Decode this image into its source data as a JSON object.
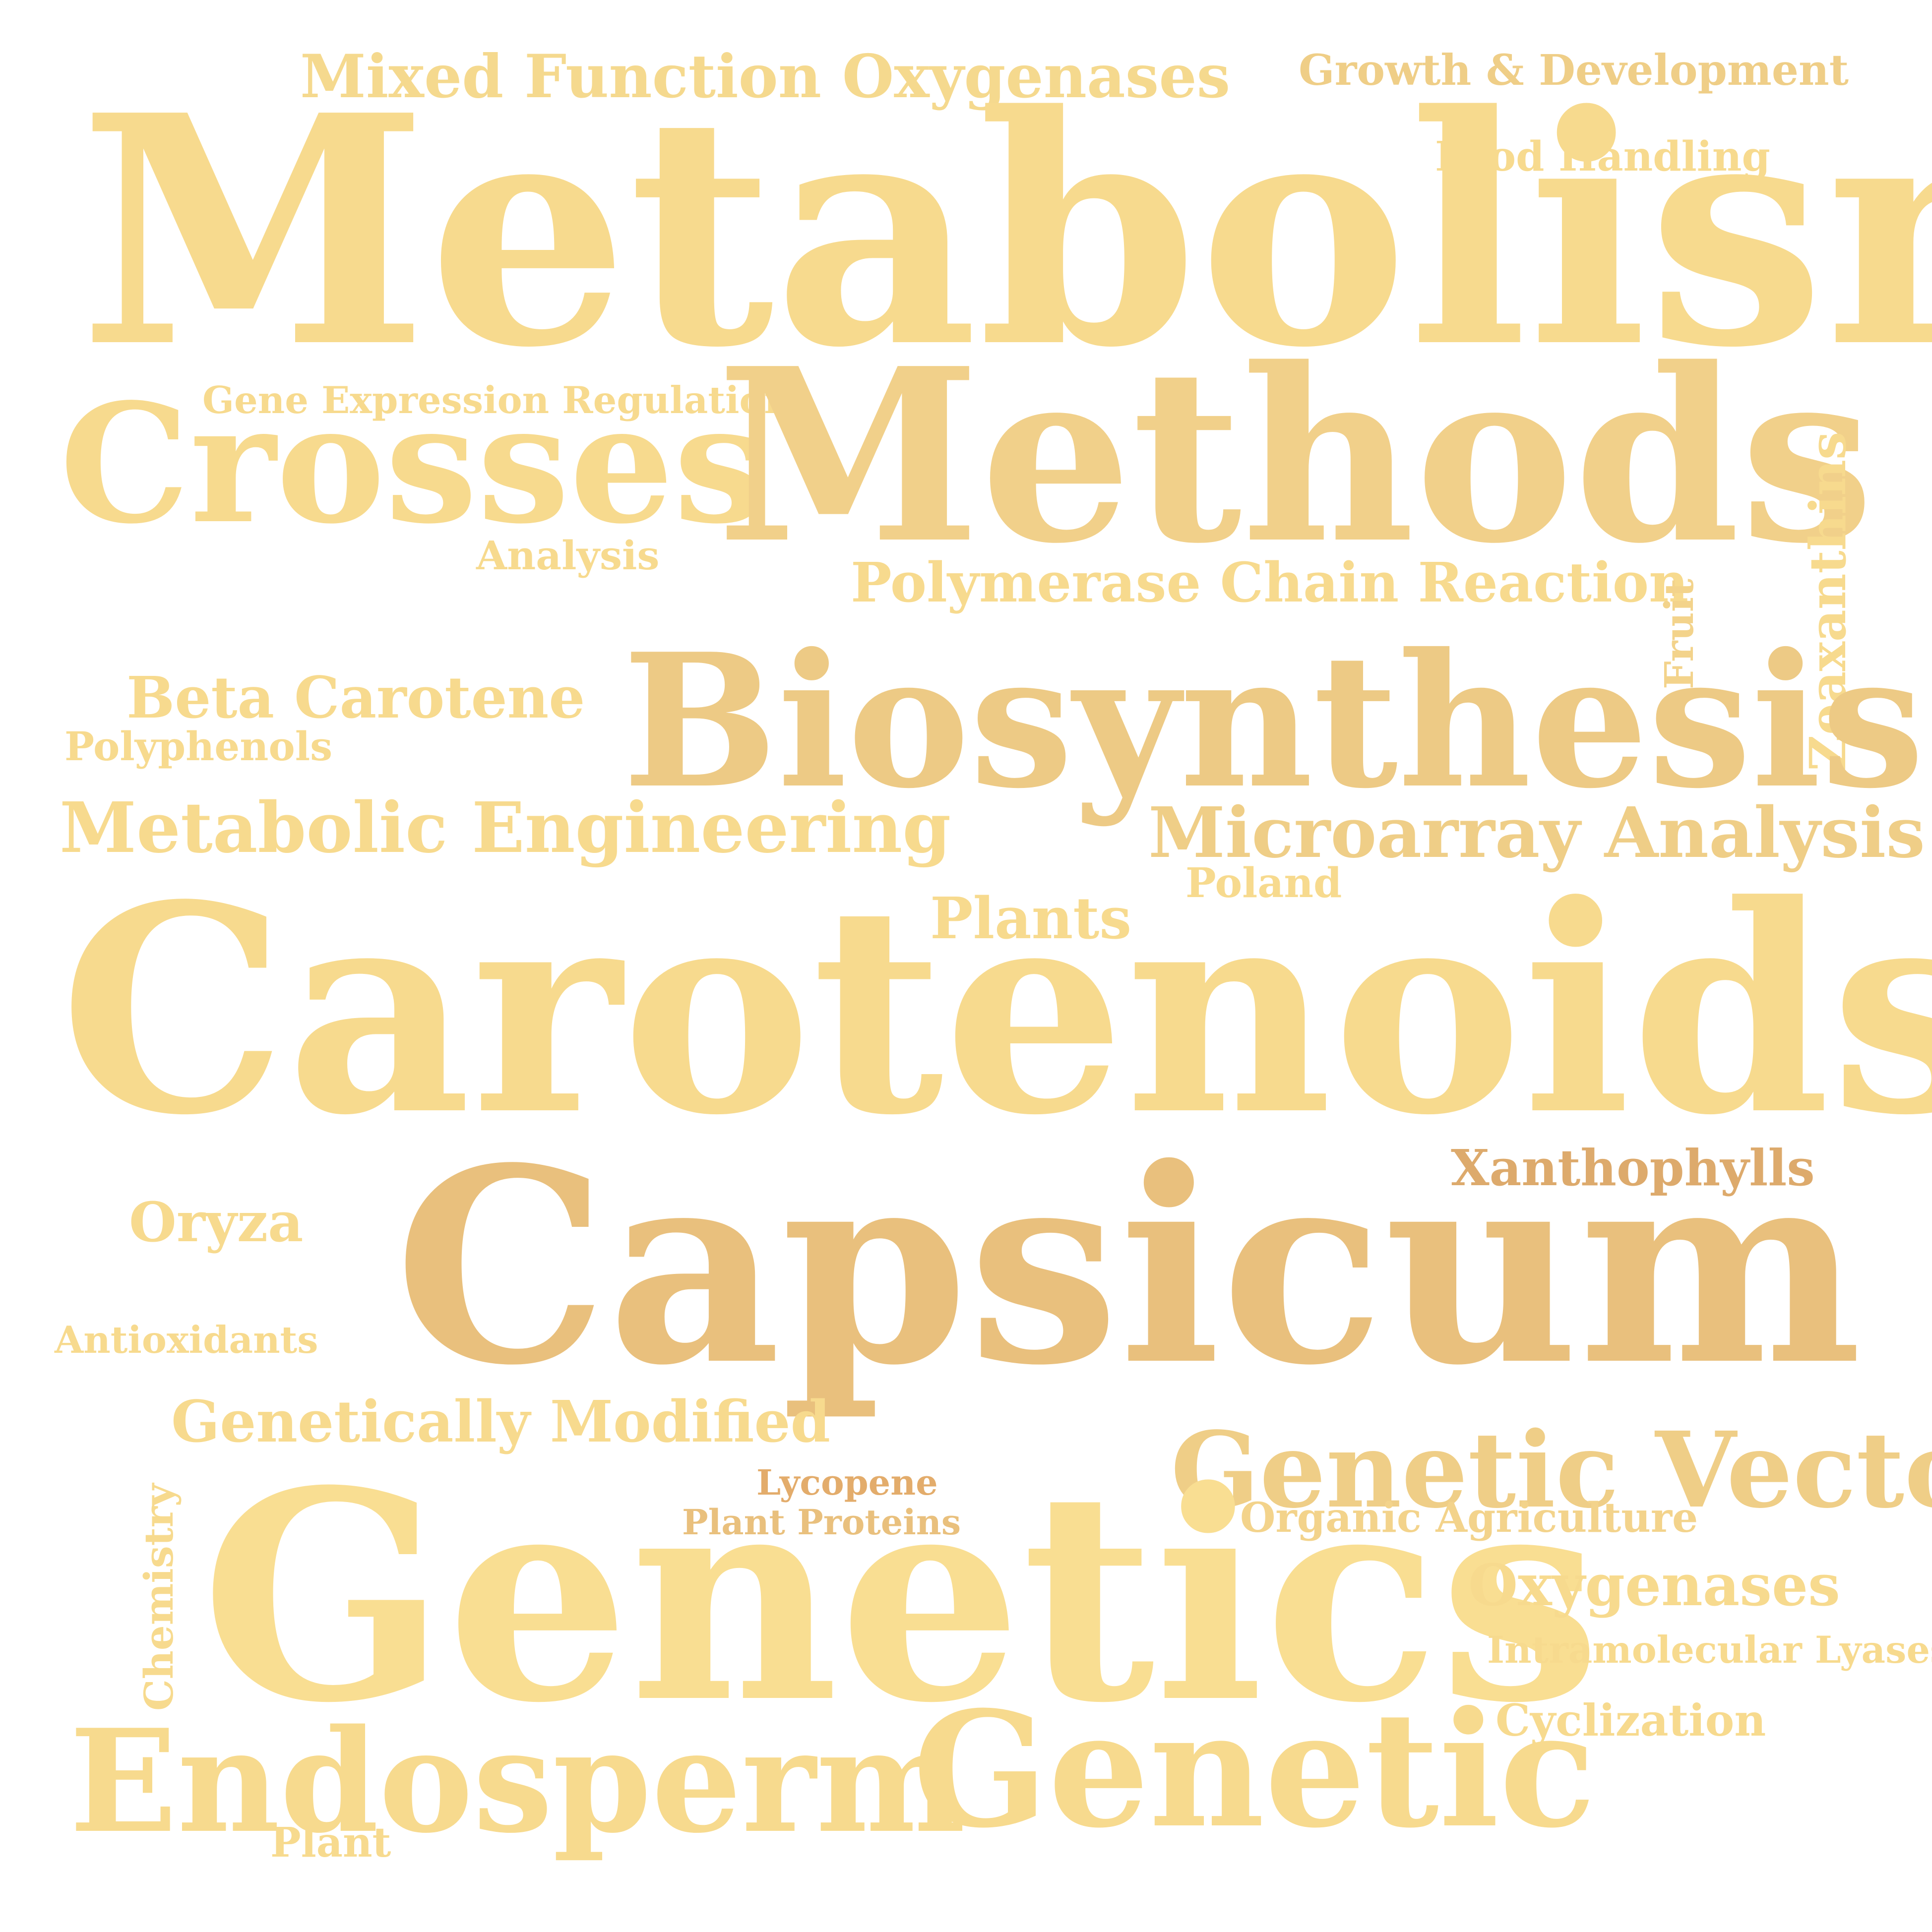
{
  "words": {
    "mixed_function_oxygenases": {
      "text": "Mixed Function Oxygenases",
      "color": "#F5D98E"
    },
    "growth_development": {
      "text": "Growth & Development",
      "color": "#EFCE87"
    },
    "metabolism": {
      "text": "Metabolism",
      "color": "#F7DA8E"
    },
    "food_handling": {
      "text": "Food Handling",
      "color": "#F7DA8E"
    },
    "gene_expression_regulation": {
      "text": "Gene Expression Regulation",
      "color": "#F7DA8E"
    },
    "crosses": {
      "text": "Crosses",
      "color": "#F7DA8E"
    },
    "methods": {
      "text": "Methods",
      "color": "#F1D08A"
    },
    "analysis": {
      "text": "Analysis",
      "color": "#F7DA8E"
    },
    "polymerase_chain_reaction": {
      "text": "Polymerase Chain Reaction",
      "color": "#F7DA8E"
    },
    "zeaxanthins": {
      "text": "Zeaxanthins",
      "color": "#F7DA8E"
    },
    "fruit": {
      "text": "Fruit",
      "color": "#F3D38B"
    },
    "beta_carotene": {
      "text": "Beta Carotene",
      "color": "#F7DA8E"
    },
    "polyphenols": {
      "text": "Polyphenols",
      "color": "#F7DA8E"
    },
    "biosynthesis": {
      "text": "Biosynthesis",
      "color": "#EDCA85"
    },
    "metabolic_engineering": {
      "text": "Metabolic Engineering",
      "color": "#F7DA8E"
    },
    "microarray_analysis": {
      "text": "Microarray Analysis",
      "color": "#EFCE87"
    },
    "poland": {
      "text": "Poland",
      "color": "#F7DA8E"
    },
    "plants": {
      "text": "Plants",
      "color": "#F7DA8E"
    },
    "carotenoids": {
      "text": "Carotenoids",
      "color": "#F7DA8E"
    },
    "xanthophylls": {
      "text": "Xanthophylls",
      "color": "#DDAA6C"
    },
    "oryza": {
      "text": "Oryza",
      "color": "#F7DA8E"
    },
    "capsicum": {
      "text": "Capsicum",
      "color": "#E9C07D"
    },
    "antioxidants": {
      "text": "Antioxidants",
      "color": "#F7DA8E"
    },
    "genetically_modified": {
      "text": "Genetically Modified",
      "color": "#F7DA8E"
    },
    "genetic_vectors": {
      "text": "Genetic Vectors",
      "color": "#EFCE87"
    },
    "lycopene": {
      "text": "Lycopene",
      "color": "#E3AC6B"
    },
    "plant_proteins": {
      "text": "Plant Proteins",
      "color": "#E9C07D"
    },
    "organic_agriculture": {
      "text": "Organic Agriculture",
      "color": "#F3D38B"
    },
    "chemistry": {
      "text": "Chemistry",
      "color": "#F7DA8E"
    },
    "genetics": {
      "text": "Genetics",
      "color": "#F9DE92"
    },
    "oxygenases": {
      "text": "Oxygenases",
      "color": "#F7DA8E"
    },
    "intramolecular_lyases": {
      "text": "Intramolecular Lyases",
      "color": "#F7DA8E"
    },
    "cyclization": {
      "text": "Cyclization",
      "color": "#F7DA8E"
    },
    "endosperm": {
      "text": "Endosperm",
      "color": "#F7DA8E"
    },
    "genetic": {
      "text": "Genetic",
      "color": "#F7DA8E"
    },
    "plant": {
      "text": "Plant",
      "color": "#F7DA8E"
    }
  }
}
